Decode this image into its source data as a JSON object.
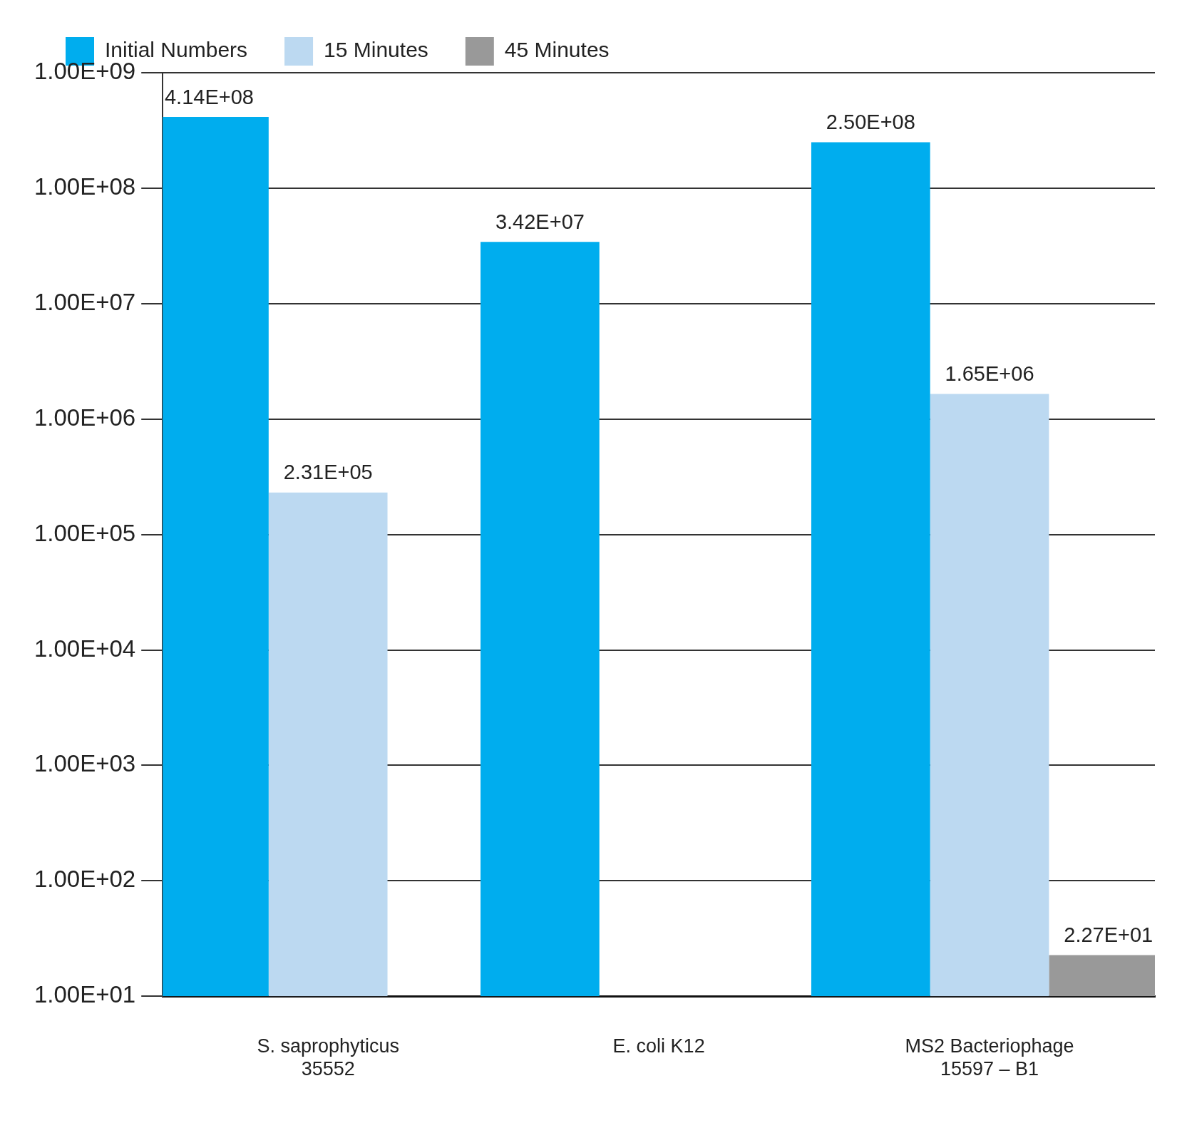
{
  "chart_data": {
    "type": "bar",
    "categories": [
      "S. saprophyticus\n35552",
      "E. coli K12",
      "MS2 Bacteriophage\n15597 – B1"
    ],
    "series": [
      {
        "name": "Initial Numbers",
        "color": "#00adee",
        "values": [
          414000000,
          34200000,
          250000000
        ],
        "value_labels": [
          "4.14E+08",
          "3.42E+07",
          "2.50E+08"
        ]
      },
      {
        "name": "15 Minutes",
        "color": "#bcd9f1",
        "values": [
          231000,
          null,
          1650000
        ],
        "value_labels": [
          "2.31E+05",
          null,
          "1.65E+06"
        ]
      },
      {
        "name": "45 Minutes",
        "color": "#999999",
        "values": [
          null,
          null,
          22.7
        ],
        "value_labels": [
          null,
          null,
          "2.27E+01"
        ]
      }
    ],
    "log": "y",
    "ylim": [
      10,
      1000000000
    ],
    "yticks": [
      {
        "value": 10,
        "label": "1.00E+01"
      },
      {
        "value": 100,
        "label": "1.00E+02"
      },
      {
        "value": 1000,
        "label": "1.00E+03"
      },
      {
        "value": 10000,
        "label": "1.00E+04"
      },
      {
        "value": 100000,
        "label": "1.00E+05"
      },
      {
        "value": 1000000,
        "label": "1.00E+06"
      },
      {
        "value": 10000000,
        "label": "1.00E+07"
      },
      {
        "value": 100000000,
        "label": "1.00E+08"
      },
      {
        "value": 1000000000,
        "label": "1.00E+09"
      }
    ],
    "grid": "y",
    "legend": "top left"
  }
}
